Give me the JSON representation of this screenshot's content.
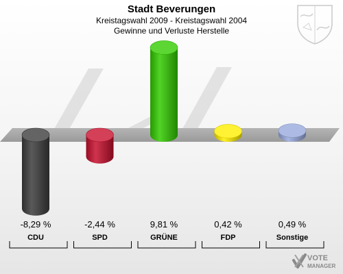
{
  "header": {
    "title": "Stadt Beverungen",
    "subtitle": "Kreistagswahl 2009 - Kreistagswahl 2004",
    "subtitle2": "Gewinne und Verluste Herstelle"
  },
  "logo": {
    "line1": "VOTE",
    "line2": "MANAGER"
  },
  "chart_data": {
    "type": "bar",
    "title": "Stadt Beverungen",
    "subtitle": "Kreistagswahl 2009 - Kreistagswahl 2004 / Gewinne und Verluste Herstelle",
    "categories": [
      "CDU",
      "SPD",
      "GRÜNE",
      "FDP",
      "Sonstige"
    ],
    "values": [
      -8.29,
      -2.44,
      9.81,
      0.42,
      0.49
    ],
    "value_labels": [
      "-8,29 %",
      "-2,44 %",
      "9,81 %",
      "0,42 %",
      "0,49 %"
    ],
    "colors": [
      "#3d3d3d",
      "#c8102e",
      "#33cc00",
      "#ffee00",
      "#99aadd"
    ],
    "ylim": [
      -10,
      12
    ],
    "grid": false,
    "legend": "none"
  }
}
